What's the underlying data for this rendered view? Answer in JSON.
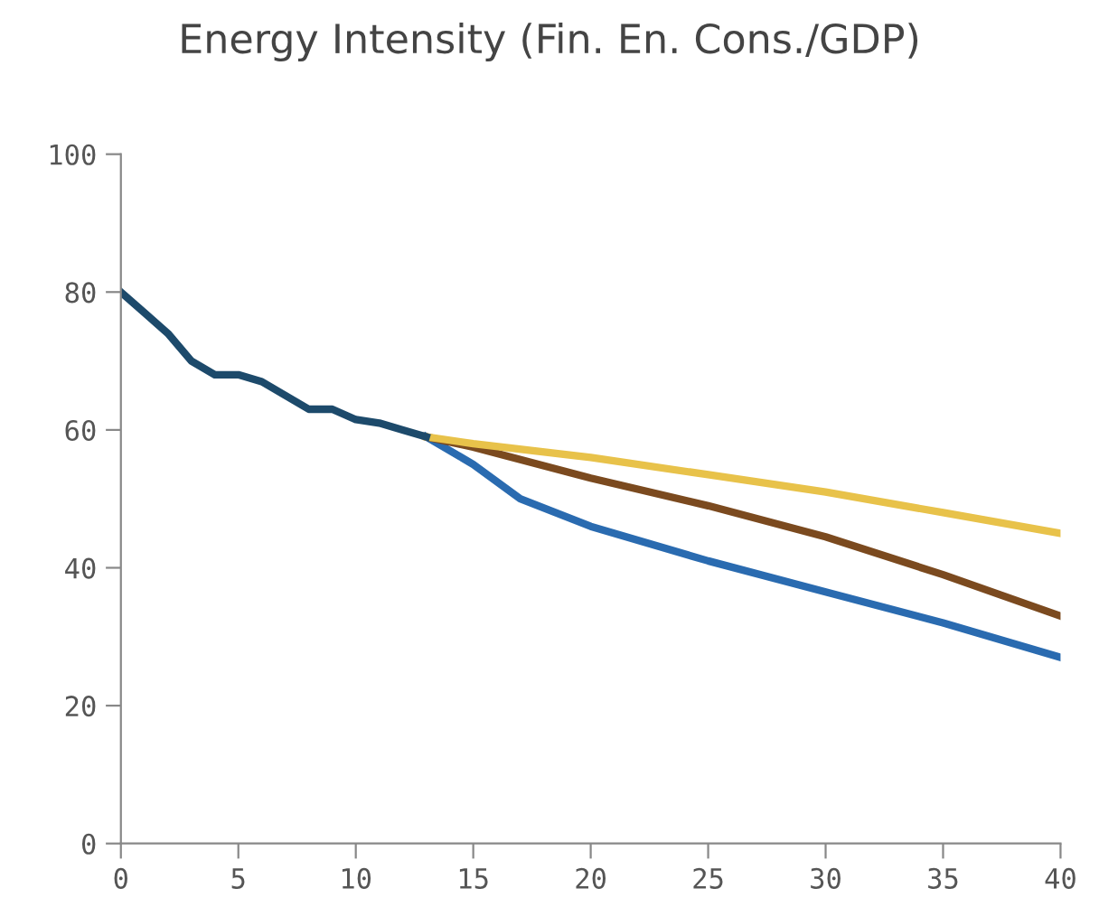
{
  "chart_data": {
    "type": "line",
    "title": "Energy Intensity (Fin. En. Cons./GDP)",
    "xlim": [
      0,
      40
    ],
    "xticks": [
      0,
      5,
      10,
      15,
      20,
      25,
      30,
      35,
      40
    ],
    "ylim": [
      0,
      100
    ],
    "yticks": [
      0,
      20,
      40,
      60,
      80,
      100
    ],
    "grid": false,
    "legend": false,
    "marker": "none",
    "line_style": "solid",
    "series": [
      {
        "color": "#2a6bb0",
        "x": [
          13,
          15,
          17,
          20,
          25,
          30,
          35,
          40
        ],
        "values": [
          59,
          55,
          50,
          46,
          41,
          36.5,
          32,
          27
        ]
      },
      {
        "color": "#7b4a1f",
        "x": [
          13,
          15,
          20,
          25,
          30,
          35,
          40
        ],
        "values": [
          59,
          57.5,
          53,
          49,
          44.5,
          39,
          33
        ]
      },
      {
        "color": "#e8c24a",
        "x": [
          13,
          15,
          20,
          25,
          30,
          35,
          40
        ],
        "values": [
          59,
          58,
          56,
          53.5,
          51,
          48,
          45
        ]
      },
      {
        "color": "#1d4a6b",
        "x": [
          0,
          1,
          2,
          3,
          4,
          5,
          6,
          7,
          8,
          9,
          10,
          11,
          12,
          13
        ],
        "values": [
          80,
          77,
          74,
          70,
          68,
          68,
          67,
          65,
          63,
          63,
          61.5,
          61,
          60,
          59
        ]
      }
    ]
  }
}
